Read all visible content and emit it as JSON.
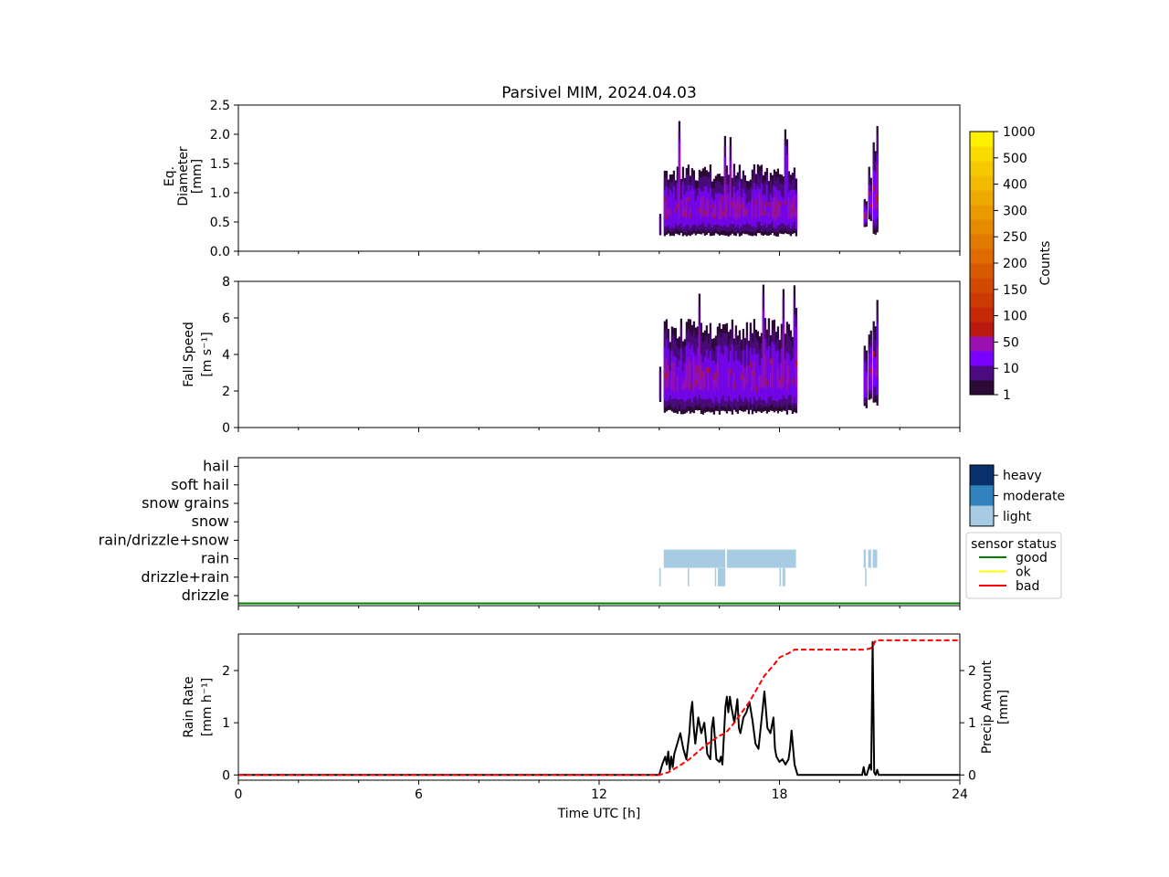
{
  "chart_data": [
    {
      "panel": "diameter",
      "type": "heatmap",
      "title": "Parsivel MIM, 2024.04.03",
      "ylabel": [
        "Eq.",
        "Diameter",
        "[mm]"
      ],
      "ylim": [
        0,
        2.5
      ],
      "yticks": [
        "0.0",
        "0.5",
        "1.0",
        "1.5",
        "2.0",
        "2.5"
      ],
      "xlim": [
        0,
        24
      ],
      "colorbar": {
        "label": "Counts",
        "ticks": [
          "1",
          "10",
          "50",
          "100",
          "150",
          "200",
          "250",
          "300",
          "400",
          "500",
          "1000"
        ],
        "colors": [
          "#2b0a35",
          "#4b0a80",
          "#7a00ff",
          "#9a10b0",
          "#b81a10",
          "#c42a08",
          "#cc3a04",
          "#d24a00",
          "#d85a00",
          "#de6a00",
          "#e27a00",
          "#e68a00",
          "#ea9a00",
          "#eeaa00",
          "#f2ba00",
          "#f6ca00",
          "#fada00",
          "#fff000"
        ]
      },
      "events": [
        {
          "start": 14.0,
          "end": 14.05,
          "ymin": 0.25,
          "ymax": 0.75,
          "level": 1
        },
        {
          "start": 14.15,
          "end": 18.55,
          "ymin": 0.25,
          "ymax": 1.5,
          "level": 2,
          "peak": 2.25
        },
        {
          "start": 20.8,
          "end": 20.9,
          "ymin": 0.4,
          "ymax": 0.9,
          "level": 2
        },
        {
          "start": 20.95,
          "end": 21.05,
          "ymin": 0.5,
          "ymax": 1.5,
          "level": 2
        },
        {
          "start": 21.1,
          "end": 21.25,
          "ymin": 0.25,
          "ymax": 1.9,
          "level": 2,
          "peak": 2.25
        }
      ]
    },
    {
      "panel": "fallspeed",
      "type": "heatmap",
      "ylabel": [
        "Fall Speed",
        "[m s⁻¹]"
      ],
      "ylim": [
        0,
        8
      ],
      "yticks": [
        "0",
        "2",
        "4",
        "6",
        "8"
      ],
      "xlim": [
        0,
        24
      ],
      "events": [
        {
          "start": 14.0,
          "end": 14.05,
          "ymin": 1.4,
          "ymax": 3.5,
          "level": 1
        },
        {
          "start": 14.15,
          "end": 18.55,
          "ymin": 0.7,
          "ymax": 6.0,
          "level": 2,
          "peak": 8.0
        },
        {
          "start": 20.8,
          "end": 20.9,
          "ymin": 1.0,
          "ymax": 5.0,
          "level": 2
        },
        {
          "start": 20.95,
          "end": 21.05,
          "ymin": 1.5,
          "ymax": 5.8,
          "level": 2
        },
        {
          "start": 21.1,
          "end": 21.25,
          "ymin": 1.1,
          "ymax": 7.0,
          "level": 2,
          "peak": 8.0
        }
      ]
    },
    {
      "panel": "precip_type",
      "type": "heatmap",
      "categories": [
        "drizzle",
        "drizzle+rain",
        "rain",
        "rain/drizzle+snow",
        "snow",
        "snow grains",
        "soft hail",
        "hail"
      ],
      "intensity_legend": [
        "heavy",
        "moderate",
        "light"
      ],
      "intensity_colors": [
        "#08306b",
        "#3182bd",
        "#a6cbe2"
      ],
      "sensor_status_legend": {
        "title": "sensor status",
        "entries": [
          {
            "label": "good",
            "color": "#008000"
          },
          {
            "label": "ok",
            "color": "#ffff00"
          },
          {
            "label": "bad",
            "color": "#ff0000"
          }
        ]
      },
      "sensor_status_value": "good",
      "xlim": [
        0,
        24
      ],
      "rain_light": [
        [
          14.15,
          16.2
        ],
        [
          16.25,
          18.55
        ],
        [
          20.8,
          20.87
        ],
        [
          20.95,
          21.05
        ],
        [
          21.1,
          21.25
        ]
      ],
      "drizzle_rain_light": [
        [
          14.0,
          14.05
        ],
        [
          14.95,
          14.98
        ],
        [
          15.85,
          15.88
        ],
        [
          15.95,
          16.2
        ],
        [
          18.0,
          18.05
        ],
        [
          18.1,
          18.12
        ],
        [
          18.15,
          18.17
        ],
        [
          20.85,
          20.88
        ]
      ]
    },
    {
      "panel": "rain",
      "type": "line",
      "xlabel": "Time UTC [h]",
      "ylabel": [
        "Rain Rate",
        "[mm h⁻¹]"
      ],
      "ylabel_right": [
        "Precip Amount",
        "[mm]"
      ],
      "xlim": [
        0,
        24
      ],
      "ylim": [
        -0.1,
        2.7
      ],
      "xticks": [
        "0",
        "6",
        "12",
        "18",
        "24"
      ],
      "yticks": [
        "0",
        "1",
        "2"
      ],
      "yticks_right": [
        "0",
        "1",
        "2"
      ],
      "series": [
        {
          "name": "rain rate",
          "color": "#000000",
          "style": "solid",
          "x": [
            0,
            14.0,
            14.1,
            14.2,
            14.25,
            14.3,
            14.35,
            14.4,
            14.45,
            14.5,
            14.6,
            14.7,
            14.8,
            14.9,
            15.0,
            15.05,
            15.1,
            15.15,
            15.2,
            15.3,
            15.4,
            15.5,
            15.6,
            15.7,
            15.75,
            15.8,
            15.9,
            16.0,
            16.05,
            16.1,
            16.2,
            16.25,
            16.3,
            16.35,
            16.4,
            16.5,
            16.6,
            16.65,
            16.7,
            16.8,
            16.9,
            17.0,
            17.1,
            17.2,
            17.3,
            17.4,
            17.5,
            17.6,
            17.7,
            17.8,
            17.85,
            17.9,
            18.0,
            18.1,
            18.2,
            18.3,
            18.35,
            18.4,
            18.5,
            18.6,
            20.75,
            20.8,
            20.85,
            20.9,
            21.0,
            21.05,
            21.1,
            21.15,
            21.2,
            21.25,
            21.3,
            24
          ],
          "y": [
            0,
            0,
            0.2,
            0.35,
            0.2,
            0.45,
            0.1,
            0.35,
            0.15,
            0.4,
            0.6,
            0.8,
            0.5,
            0.3,
            0.8,
            1.2,
            1.4,
            0.9,
            0.6,
            1.1,
            0.8,
            1.0,
            0.4,
            0.3,
            0.9,
            1.1,
            0.3,
            0.25,
            0.35,
            0.2,
            1.3,
            1.5,
            1.2,
            1.5,
            1.3,
            1.0,
            1.45,
            0.9,
            0.8,
            1.1,
            1.2,
            1.4,
            1.05,
            0.6,
            0.5,
            1.05,
            1.6,
            0.9,
            0.8,
            1.1,
            0.5,
            0.35,
            0.25,
            0.3,
            0.2,
            0.3,
            0.5,
            0.85,
            0.2,
            0,
            0,
            0.15,
            0,
            0,
            0.2,
            0.1,
            2.55,
            0.05,
            0,
            0.1,
            0,
            0
          ]
        },
        {
          "name": "precip amount",
          "color": "#ff0000",
          "style": "dashed",
          "x": [
            0,
            14.0,
            14.3,
            14.6,
            15.0,
            15.5,
            16.0,
            16.2,
            16.5,
            17.0,
            17.5,
            17.8,
            18.0,
            18.3,
            18.5,
            20.8,
            21.0,
            21.1,
            21.2,
            24
          ],
          "y": [
            0,
            0,
            0.05,
            0.15,
            0.3,
            0.55,
            0.75,
            0.8,
            1.0,
            1.4,
            1.9,
            2.1,
            2.25,
            2.33,
            2.4,
            2.4,
            2.42,
            2.45,
            2.58,
            2.58
          ]
        }
      ]
    }
  ]
}
